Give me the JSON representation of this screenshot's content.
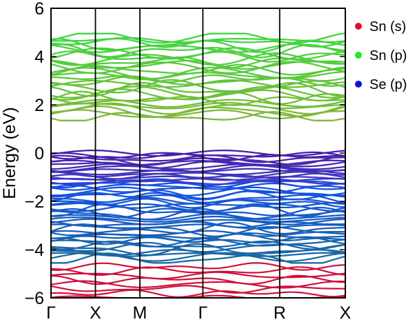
{
  "chart_data": {
    "type": "line",
    "ylabel": "Energy (eV)",
    "ylim": [
      -6,
      6
    ],
    "yticks": [
      {
        "value": 6,
        "label": "6"
      },
      {
        "value": 4,
        "label": "4"
      },
      {
        "value": 2,
        "label": "2"
      },
      {
        "value": 0,
        "label": "0"
      },
      {
        "value": -2,
        "label": "−2"
      },
      {
        "value": -4,
        "label": "−4"
      },
      {
        "value": -6,
        "label": "−6"
      }
    ],
    "kpath": [
      {
        "label": "Γ",
        "pos": 0.0
      },
      {
        "label": "X",
        "pos": 0.151
      },
      {
        "label": "M",
        "pos": 0.302
      },
      {
        "label": "Γ",
        "pos": 0.516
      },
      {
        "label": "R",
        "pos": 0.777
      },
      {
        "label": "X",
        "pos": 1.0
      }
    ],
    "legend": [
      {
        "name": "Sn (s)",
        "color": "#e0102a"
      },
      {
        "name": "Sn (p)",
        "color": "#22e822"
      },
      {
        "name": "Se (p)",
        "color": "#1010e0"
      }
    ],
    "bands": {
      "conduction": {
        "range": [
          1.5,
          4.8
        ],
        "color_top": "#3fd63f",
        "color_bottom": "#7fb83a"
      },
      "valence_upper": {
        "range": [
          -1.2,
          0.0
        ],
        "color_top": "#4a1fa8",
        "color_bottom": "#3c3cc8"
      },
      "valence_lower": {
        "range": [
          -4.4,
          -1.2
        ],
        "color_top": "#1450e8",
        "color_bottom": "#1a6aa0"
      },
      "sn_s": {
        "range": [
          -6.0,
          -4.7
        ],
        "color": "#d0103a"
      }
    }
  }
}
